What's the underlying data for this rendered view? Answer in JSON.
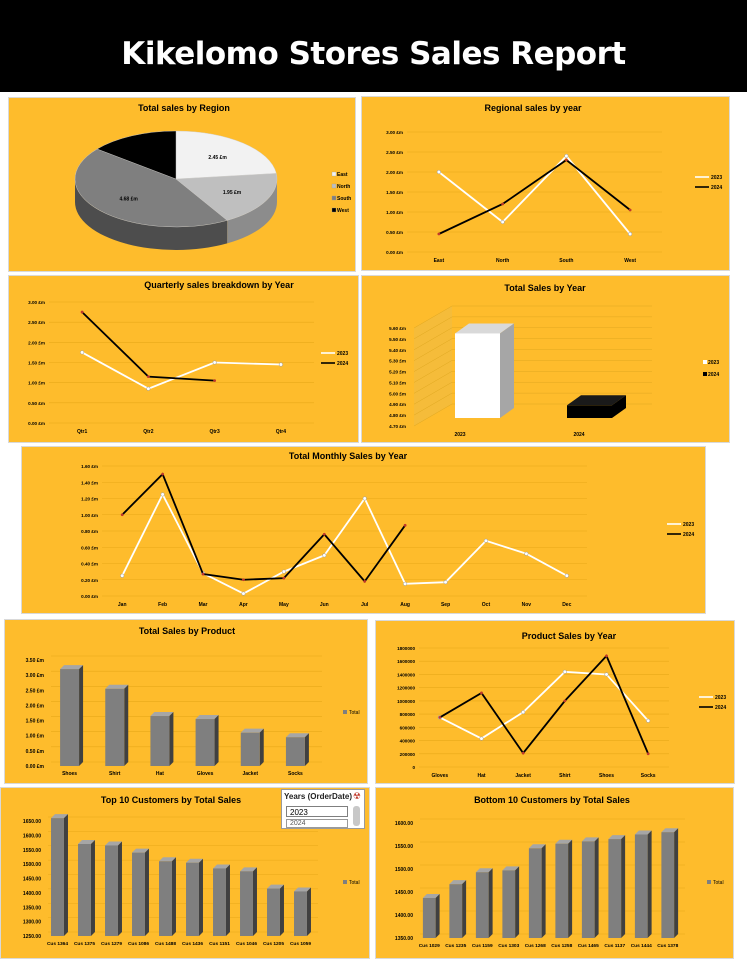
{
  "report": {
    "title": "Kikelomo Stores Sales Report"
  },
  "colors": {
    "panel": "#FEBC2C",
    "series2023": "#FFFFFF",
    "series2024": "#000000",
    "bar": "#7F7F7F"
  },
  "slicer": {
    "title": "Years (OrderDate)",
    "selected": "2023",
    "next": "2024"
  },
  "chart_data": [
    {
      "id": "region",
      "type": "pie",
      "title": "Total sales by Region",
      "categories": [
        "East",
        "North",
        "South",
        "West"
      ],
      "values": [
        2.45,
        1.95,
        4.68,
        1.51
      ],
      "labels": [
        "2.45 £m",
        "1.95 £m",
        "4.68 £m",
        "1.51 £m"
      ],
      "colors": [
        "#F2F2F2",
        "#BFBFBF",
        "#7F7F7F",
        "#000000"
      ],
      "legend": "right"
    },
    {
      "id": "regional",
      "type": "line",
      "title": "Regional sales by year",
      "categories": [
        "East",
        "North",
        "South",
        "West"
      ],
      "ylim": [
        0,
        3
      ],
      "yticks": [
        "0.00 £m",
        "0.50 £m",
        "1.00 £m",
        "1.50 £m",
        "2.00 £m",
        "2.50 £m",
        "3.00 £m"
      ],
      "series": [
        {
          "name": "2023",
          "values": [
            2.0,
            0.75,
            2.4,
            0.45
          ]
        },
        {
          "name": "2024",
          "values": [
            0.45,
            1.2,
            2.3,
            1.05
          ]
        }
      ],
      "legend": "right"
    },
    {
      "id": "quarterly",
      "type": "line",
      "title": "Quarterly sales breakdown by Year",
      "categories": [
        "Qtr1",
        "Qtr2",
        "Qtr3",
        "Qtr4"
      ],
      "ylim": [
        0,
        3
      ],
      "yticks": [
        "0.00 £m",
        "0.50 £m",
        "1.00 £m",
        "1.50 £m",
        "2.00 £m",
        "2.50 £m",
        "3.00 £m"
      ],
      "series": [
        {
          "name": "2023",
          "values": [
            1.75,
            0.85,
            1.5,
            1.45
          ]
        },
        {
          "name": "2024",
          "values": [
            2.75,
            1.15,
            1.05,
            null
          ]
        }
      ],
      "legend": "right"
    },
    {
      "id": "yearly",
      "type": "bar",
      "title": "Total Sales by Year",
      "categories": [
        "2023",
        "2024"
      ],
      "values": [
        5.55,
        4.89
      ],
      "colors": [
        "#FFFFFF",
        "#000000"
      ],
      "ylim": [
        4.7,
        5.6
      ],
      "yticks": [
        "4.70 £m",
        "4.80 £m",
        "4.90 £m",
        "5.00 £m",
        "5.10 £m",
        "5.20 £m",
        "5.30 £m",
        "5.40 £m",
        "5.50 £m",
        "5.60 £m"
      ],
      "legend": "right"
    },
    {
      "id": "monthly",
      "type": "line",
      "title": "Total Monthly Sales by Year",
      "categories": [
        "Jan",
        "Feb",
        "Mar",
        "Apr",
        "May",
        "Jun",
        "Jul",
        "Aug",
        "Sep",
        "Oct",
        "Nov",
        "Dec"
      ],
      "ylim": [
        0,
        1.6
      ],
      "yticks": [
        "0.00 £m",
        "0.20 £m",
        "0.40 £m",
        "0.60 £m",
        "0.80 £m",
        "1.00 £m",
        "1.20 £m",
        "1.40 £m",
        "1.60 £m"
      ],
      "series": [
        {
          "name": "2023",
          "values": [
            0.25,
            1.25,
            0.28,
            0.03,
            0.3,
            0.5,
            1.2,
            0.15,
            0.17,
            0.68,
            0.52,
            0.25
          ]
        },
        {
          "name": "2024",
          "values": [
            1.0,
            1.5,
            0.27,
            0.2,
            0.22,
            0.76,
            0.18,
            0.87,
            null,
            null,
            null,
            null
          ]
        }
      ],
      "legend": "right"
    },
    {
      "id": "product",
      "type": "bar",
      "title": "Total Sales by Product",
      "categories": [
        "Shoes",
        "Shirt",
        "Hat",
        "Gloves",
        "Jacket",
        "Socks"
      ],
      "values": [
        3.2,
        2.55,
        1.65,
        1.55,
        1.1,
        0.95
      ],
      "ylim": [
        0,
        3.5
      ],
      "yticks": [
        "0.00 £m",
        "0.50 £m",
        "1.00 £m",
        "1.50 £m",
        "2.00 £m",
        "2.50 £m",
        "3.00 £m",
        "3.50 £m"
      ],
      "legend_label": "Total",
      "legend": "right"
    },
    {
      "id": "productyear",
      "type": "line",
      "title": "Product Sales by Year",
      "categories": [
        "Gloves",
        "Hat",
        "Jacket",
        "Shirt",
        "Shoes",
        "Socks"
      ],
      "ylim": [
        0,
        1800000
      ],
      "yticks": [
        "0",
        "200000",
        "400000",
        "600000",
        "800000",
        "1000000",
        "1200000",
        "1400000",
        "1600000",
        "1800000"
      ],
      "series": [
        {
          "name": "2023",
          "values": [
            750000,
            430000,
            830000,
            1440000,
            1400000,
            700000
          ]
        },
        {
          "name": "2024",
          "values": [
            750000,
            1120000,
            210000,
            1000000,
            1680000,
            200000
          ]
        }
      ],
      "legend": "right"
    },
    {
      "id": "top10",
      "type": "bar",
      "title": "Top 10 Customers by Total Sales",
      "categories": [
        "Cus 1364",
        "Cus 1375",
        "Cus 1279",
        "Cus 1086",
        "Cus 1488",
        "Cus 1436",
        "Cus 1151",
        "Cus 1046",
        "Cus 1205",
        "Cus 1059"
      ],
      "values": [
        1660,
        1570,
        1565,
        1540,
        1510,
        1505,
        1485,
        1475,
        1415,
        1405
      ],
      "ylim": [
        1250,
        1650
      ],
      "yticks": [
        "1250.00",
        "1300.00",
        "1350.00",
        "1400.00",
        "1450.00",
        "1500.00",
        "1550.00",
        "1600.00",
        "1650.00"
      ],
      "legend_label": "Total",
      "legend": "right"
    },
    {
      "id": "bottom10",
      "type": "bar",
      "title": "Bottom 10 Customers by Total Sales",
      "categories": [
        "Cus 1029",
        "Cus 1235",
        "Cus 1159",
        "Cus 1303",
        "Cus 1268",
        "Cus 1258",
        "Cus 1465",
        "Cus 1137",
        "Cus 1444",
        "Cus 1378"
      ],
      "values": [
        1437,
        1467,
        1493,
        1497,
        1545,
        1555,
        1560,
        1565,
        1575,
        1580
      ],
      "ylim": [
        1350,
        1600
      ],
      "yticks": [
        "1350.00",
        "1400.00",
        "1450.00",
        "1500.00",
        "1550.00",
        "1600.00"
      ],
      "legend_label": "Total",
      "legend": "right"
    }
  ]
}
